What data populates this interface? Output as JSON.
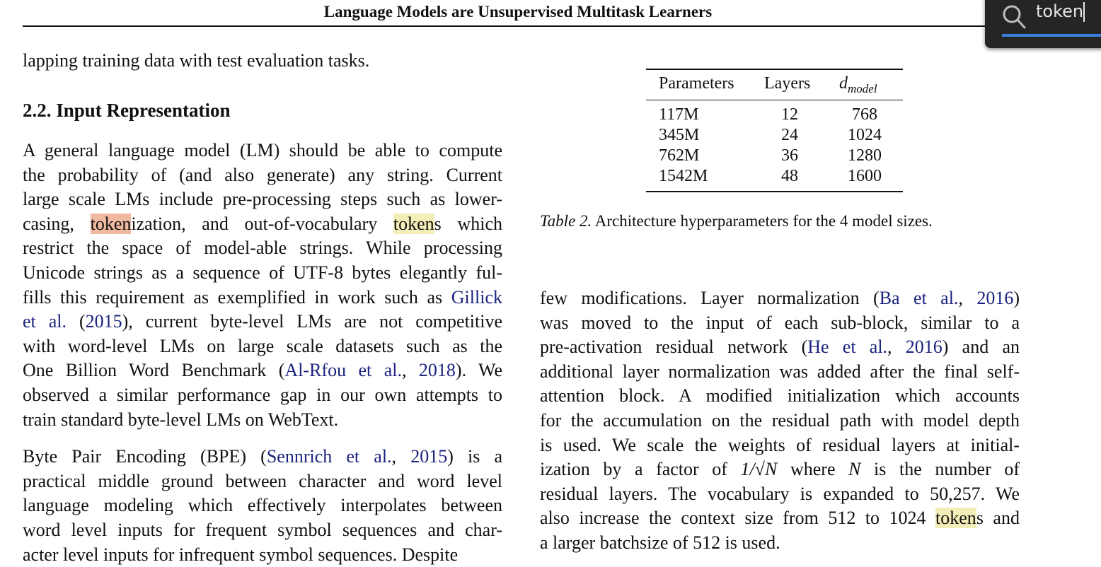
{
  "header": {
    "title": "Language Models are Unsupervised Multitask Learners"
  },
  "search": {
    "query": "token",
    "icon": "search-icon",
    "accent": "#3b7ddd"
  },
  "highlight_colors": {
    "current": "#f0b9a0",
    "other": "#f3edb8"
  },
  "left": {
    "intro": [
      [
        "lapping training data with test evaluation tasks."
      ]
    ],
    "heading": "2.2. Input Representation",
    "para1": [
      [
        "A general language model (LM) should be able to compute"
      ],
      [
        "the probability of (and also generate) any string.  Current"
      ],
      [
        "large scale LMs include pre-processing steps such as lower-"
      ],
      [
        "casing, ",
        {
          "t": "token",
          "c": "hl1"
        },
        "ization, and out-of-vocabulary ",
        {
          "t": "token",
          "c": "hl2"
        },
        "s which"
      ],
      [
        "restrict the space of model-able strings. While processing"
      ],
      [
        "Unicode strings as a sequence of UTF-8 bytes elegantly ful-"
      ],
      [
        "fills this requirement as exemplified in work such as ",
        {
          "t": "Gillick",
          "c": "link"
        }
      ],
      [
        {
          "t": "et al.",
          "c": "link"
        },
        " (",
        {
          "t": "2015",
          "c": "link"
        },
        "), current byte-level LMs are not competitive"
      ],
      [
        "with word-level LMs on large scale datasets such as the"
      ],
      [
        "One Billion Word Benchmark (",
        {
          "t": "Al-Rfou et al.",
          "c": "link"
        },
        ", ",
        {
          "t": "2018",
          "c": "link"
        },
        ").  We"
      ],
      [
        "observed a similar performance gap in our own attempts to"
      ],
      [
        "train standard byte-level LMs on WebText."
      ]
    ],
    "para2": [
      [
        "Byte Pair Encoding (BPE) (",
        {
          "t": "Sennrich et al.",
          "c": "link"
        },
        ", ",
        {
          "t": "2015",
          "c": "link"
        },
        ") is a"
      ],
      [
        "practical middle ground between character and word level"
      ],
      [
        "language modeling which effectively interpolates between"
      ],
      [
        "word level inputs for frequent symbol sequences and char-"
      ],
      [
        "acter level inputs for infrequent symbol sequences. Despite"
      ]
    ]
  },
  "table": {
    "headers": [
      "Parameters",
      "Layers",
      "d",
      "model"
    ],
    "rows": [
      [
        "117M",
        "12",
        "768"
      ],
      [
        "345M",
        "24",
        "1024"
      ],
      [
        "762M",
        "36",
        "1280"
      ],
      [
        "1542M",
        "48",
        "1600"
      ]
    ],
    "caption_label": "Table 2.",
    "caption": " Architecture hyperparameters for the 4 model sizes."
  },
  "right": {
    "para": [
      [
        "few modifications.  Layer normalization (",
        {
          "t": "Ba et al.",
          "c": "link"
        },
        ", ",
        {
          "t": "2016",
          "c": "link"
        },
        ")"
      ],
      [
        "was moved to the input of each sub-block, similar to a"
      ],
      [
        "pre-activation residual network (",
        {
          "t": "He et al.",
          "c": "link"
        },
        ", ",
        {
          "t": "2016",
          "c": "link"
        },
        ") and an"
      ],
      [
        "additional layer normalization was added after the final self-"
      ],
      [
        "attention block.  A modified initialization which accounts"
      ],
      [
        "for the accumulation on the residual path with model depth"
      ],
      [
        "is used.  We scale the weights of residual layers at initial-"
      ],
      [
        "ization by a factor of ",
        {
          "t": "1/√N",
          "c": "math"
        },
        " where ",
        {
          "t": "N",
          "c": "math"
        },
        " is the number of"
      ],
      [
        "residual layers. The vocabulary is expanded to 50,257. We"
      ],
      [
        "also increase the context size from 512 to 1024 ",
        {
          "t": "token",
          "c": "hl2"
        },
        "s and"
      ],
      [
        "a larger batchsize of 512 is used."
      ]
    ]
  }
}
